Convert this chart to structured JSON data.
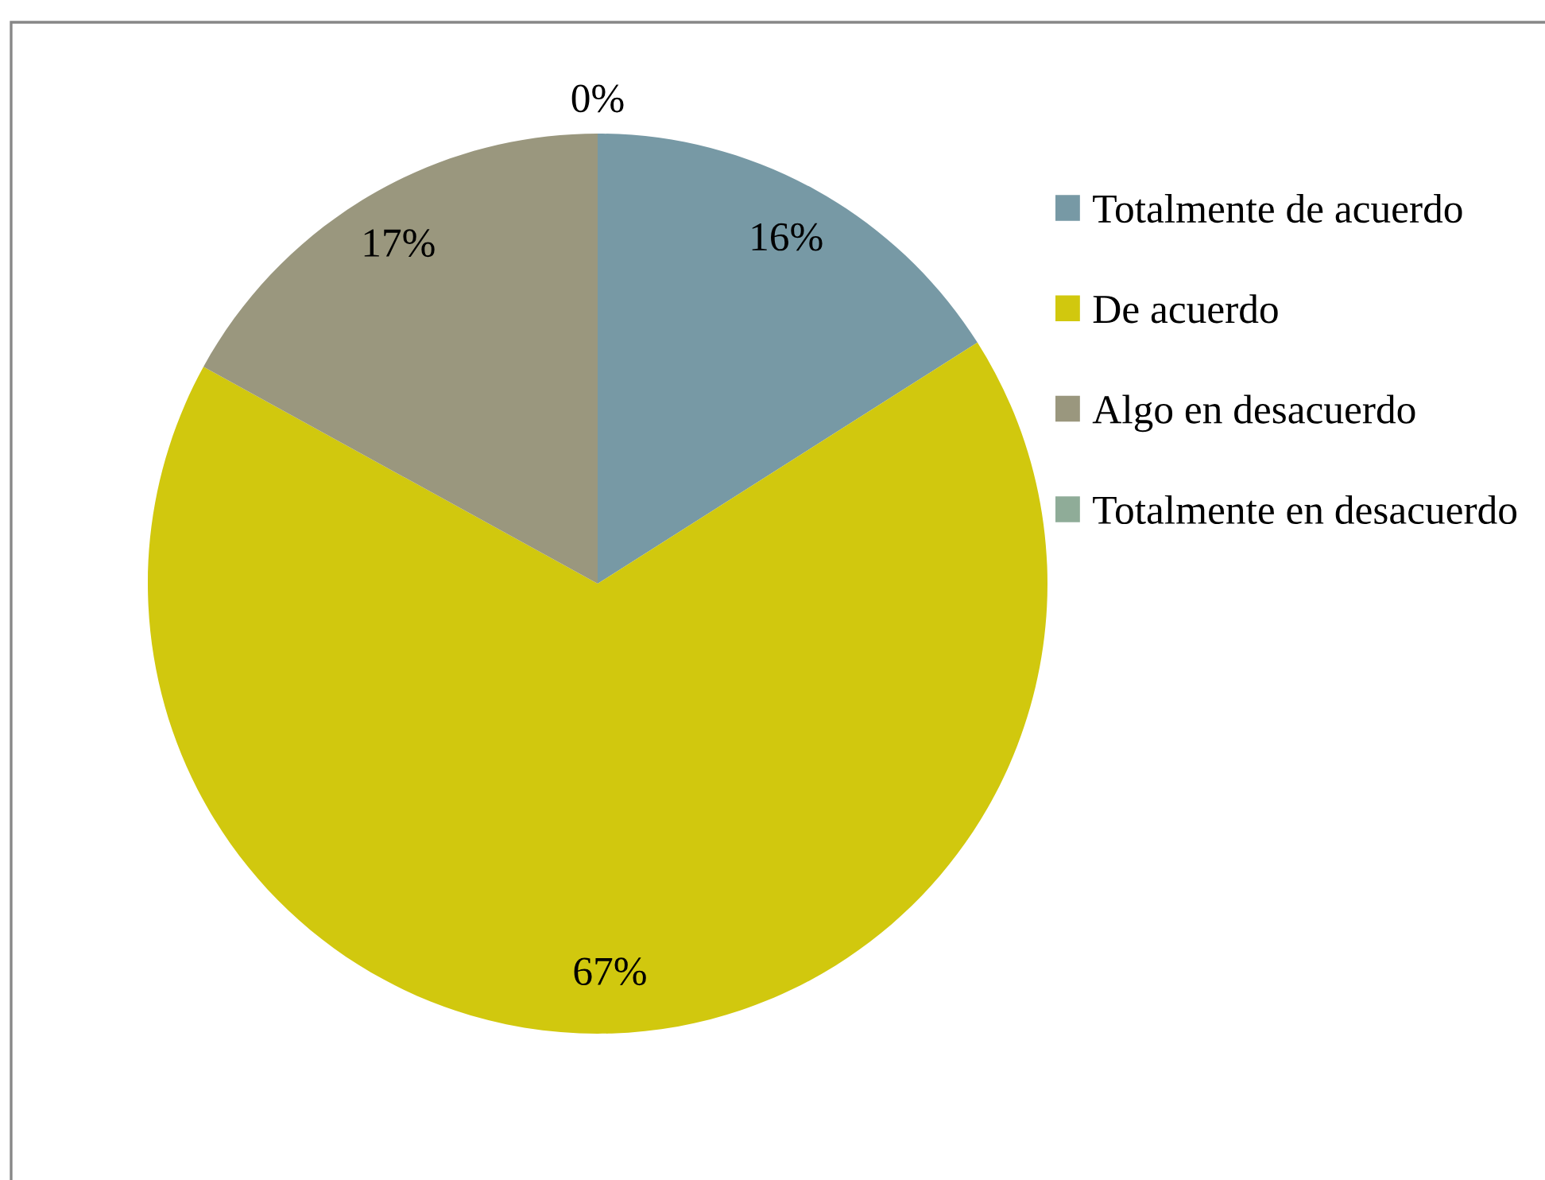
{
  "chart_data": {
    "type": "pie",
    "categories": [
      "Totalmente de acuerdo",
      "De acuerdo",
      "Algo en desacuerdo",
      "Totalmente en desacuerdo"
    ],
    "values": [
      16,
      67,
      17,
      0
    ],
    "colors": [
      "#7799a5",
      "#d1c80e",
      "#9a977e",
      "#8fac98"
    ],
    "value_labels": [
      "16%",
      "67%",
      "17%",
      "0%"
    ],
    "legend": "right"
  }
}
